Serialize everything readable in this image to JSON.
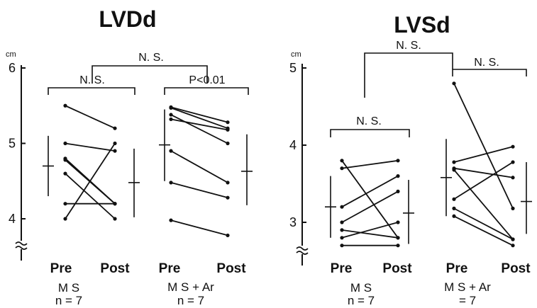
{
  "chart_data": [
    {
      "type": "line",
      "title": "LVDd",
      "unit": "cm",
      "ylim": [
        4,
        6
      ],
      "y_ticks": [
        "4",
        "5",
        "6"
      ],
      "groups": [
        {
          "label_line1": "M S",
          "label_line2": "n = 7",
          "x_labels": [
            "Pre",
            "Post"
          ],
          "pairs": [
            [
              5.5,
              5.2
            ],
            [
              5.0,
              4.9
            ],
            [
              4.8,
              4.2
            ],
            [
              4.78,
              4.2
            ],
            [
              4.6,
              4.0
            ],
            [
              4.2,
              4.2
            ],
            [
              4.0,
              5.0
            ]
          ],
          "pre_summary": {
            "mean": 4.7,
            "sd_low": 4.3,
            "sd_high": 5.1
          },
          "post_summary": {
            "mean": 4.48,
            "sd_low": 4.02,
            "sd_high": 4.93
          }
        },
        {
          "label_line1": "M S + Ar",
          "label_line2": "n = 7",
          "x_labels": [
            "Pre",
            "Post"
          ],
          "pairs": [
            [
              5.48,
              5.28
            ],
            [
              5.47,
              5.2
            ],
            [
              5.38,
              5.0
            ],
            [
              5.32,
              5.18
            ],
            [
              4.9,
              4.48
            ],
            [
              4.48,
              4.28
            ],
            [
              3.98,
              3.78
            ]
          ],
          "pre_summary": {
            "mean": 4.98,
            "sd_low": 4.5,
            "sd_high": 5.45
          },
          "post_summary": {
            "mean": 4.63,
            "sd_low": 4.18,
            "sd_high": 5.12
          }
        }
      ],
      "comparisons": {
        "within_ms": "N. S.",
        "within_ms_ar": "P<0.01",
        "between": "N. S."
      }
    },
    {
      "type": "line",
      "title": "LVSd",
      "unit": "cm",
      "ylim": [
        2.7,
        5
      ],
      "y_ticks": [
        "3",
        "4",
        "5"
      ],
      "groups": [
        {
          "label_line1": "M S",
          "label_line2": "n = 7",
          "x_labels": [
            "Pre",
            "Post"
          ],
          "pairs": [
            [
              3.8,
              2.8
            ],
            [
              3.7,
              3.8
            ],
            [
              3.2,
              3.6
            ],
            [
              3.0,
              3.4
            ],
            [
              2.9,
              2.8
            ],
            [
              2.8,
              3.0
            ],
            [
              2.7,
              2.7
            ]
          ],
          "pre_summary": {
            "mean": 3.2,
            "sd_low": 2.8,
            "sd_high": 3.6
          },
          "post_summary": {
            "mean": 3.12,
            "sd_low": 2.72,
            "sd_high": 3.55
          }
        },
        {
          "label_line1": "M S + Ar",
          "label_line2": "= 7",
          "x_labels": [
            "Pre",
            "Post"
          ],
          "pairs": [
            [
              4.8,
              3.18
            ],
            [
              3.78,
              3.98
            ],
            [
              3.7,
              3.58
            ],
            [
              3.68,
              2.78
            ],
            [
              3.3,
              3.78
            ],
            [
              3.18,
              2.78
            ],
            [
              3.08,
              2.7
            ]
          ],
          "pre_summary": {
            "mean": 3.58,
            "sd_low": 3.08,
            "sd_high": 4.08
          },
          "post_summary": {
            "mean": 3.27,
            "sd_low": 2.85,
            "sd_high": 3.78
          }
        }
      ],
      "comparisons": {
        "within_ms": "N. S.",
        "within_ms_ar": "N. S.",
        "between": "N. S."
      }
    }
  ]
}
